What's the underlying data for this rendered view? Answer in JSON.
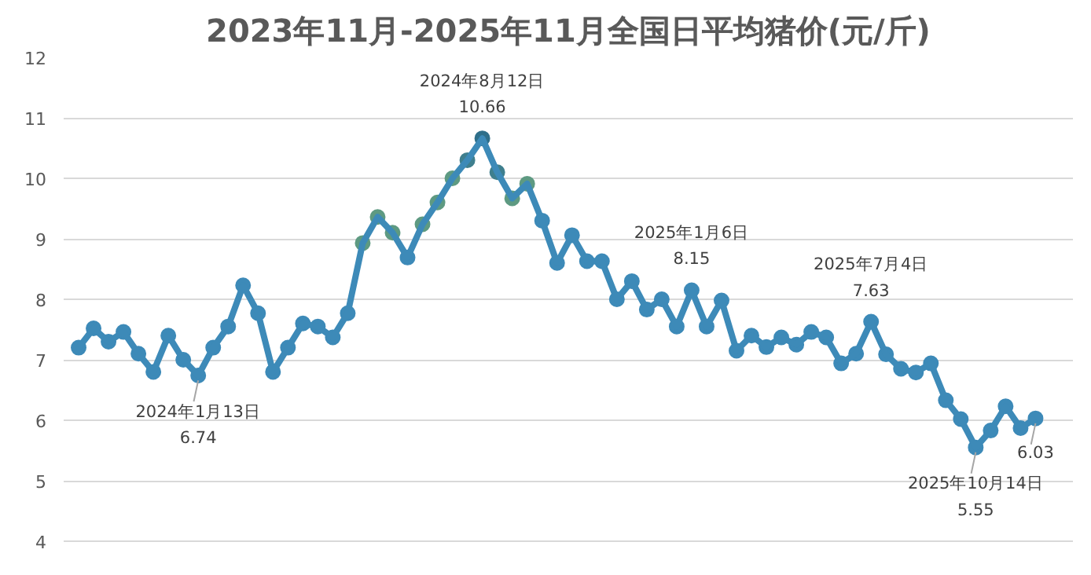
{
  "chart_data": {
    "type": "line",
    "color": "#3d8ab8",
    "title": "2023年11月-2025年11月全国日平均猪价(元/斤)",
    "categories": [
      null,
      null,
      null,
      null,
      null,
      null,
      null,
      null,
      null,
      null,
      null,
      null,
      null,
      null,
      null,
      null,
      null,
      null,
      null,
      null,
      null,
      null,
      null,
      null,
      null,
      null,
      null,
      null,
      null,
      null,
      null,
      null,
      null,
      null,
      null,
      null,
      null,
      null,
      null,
      null,
      null,
      null,
      null,
      null,
      null,
      null,
      null,
      null,
      null,
      null,
      null,
      null,
      null,
      null,
      null,
      null,
      null,
      null,
      null,
      null,
      null,
      null,
      null,
      null,
      null
    ],
    "values": [
      7.2,
      7.52,
      7.3,
      7.46,
      7.1,
      6.8,
      7.4,
      7.0,
      6.74,
      7.2,
      7.55,
      8.23,
      7.77,
      6.8,
      7.2,
      7.6,
      7.55,
      7.37,
      7.77,
      8.93,
      9.36,
      9.1,
      8.69,
      9.24,
      9.6,
      10.0,
      10.3,
      10.66,
      10.1,
      9.67,
      9.91,
      9.3,
      8.6,
      9.06,
      8.63,
      8.63,
      8.0,
      8.3,
      7.83,
      8.0,
      7.55,
      8.15,
      7.55,
      7.98,
      7.15,
      7.4,
      7.21,
      7.37,
      7.25,
      7.46,
      7.37,
      6.94,
      7.1,
      7.63,
      7.09,
      6.85,
      6.79,
      6.94,
      6.33,
      6.02,
      5.55,
      5.83,
      6.23,
      5.87,
      6.03
    ],
    "colors": [
      "#3d8ab8",
      "#3d8ab8",
      "#3d8ab8",
      "#3d8ab8",
      "#3d8ab8",
      "#3d8ab8",
      "#3d8ab8",
      "#3d8ab8",
      "#3d8ab8",
      "#3d8ab8",
      "#3d8ab8",
      "#3d8ab8",
      "#3d8ab8",
      "#3d8ab8",
      "#3d8ab8",
      "#3d8ab8",
      "#3d8ab8",
      "#3d8ab8",
      "#3d8ab8",
      "#5e9a82",
      "#5e9a82",
      "#5e9a82",
      "#3d8ab8",
      "#5e9a82",
      "#5e9a82",
      "#5e9a82",
      "#3f7f8e",
      "#2f6f8a",
      "#3f7f8e",
      "#5e9a82",
      "#5e9a82",
      "#3d8ab8",
      "#3d8ab8",
      "#3d8ab8",
      "#3d8ab8",
      "#3d8ab8",
      "#3d8ab8",
      "#3d8ab8",
      "#3d8ab8",
      "#3d8ab8",
      "#3d8ab8",
      "#3d8ab8",
      "#3d8ab8",
      "#3d8ab8",
      "#3d8ab8",
      "#3d8ab8",
      "#3d8ab8",
      "#3d8ab8",
      "#3d8ab8",
      "#3d8ab8",
      "#3d8ab8",
      "#3d8ab8",
      "#3d8ab8",
      "#3d8ab8",
      "#3d8ab8",
      "#3d8ab8",
      "#3d8ab8",
      "#3d8ab8",
      "#3d8ab8",
      "#3d8ab8",
      "#3d8ab8",
      "#3d8ab8",
      "#3d8ab8",
      "#3d8ab8",
      "#3d8ab8"
    ],
    "ylim": [
      4,
      12
    ],
    "yticks": [
      4,
      5,
      6,
      7,
      8,
      9,
      10,
      11,
      12
    ],
    "grid": "y",
    "tick_labels": "y",
    "marker": "circle",
    "legend": false,
    "annotations": [
      {
        "text": "2024年1月13日\n6.74",
        "y": 6.74
      },
      {
        "text": "2024年8月12日\n10.66",
        "y": 10.66
      },
      {
        "text": "2025年1月6日\n8.15",
        "y": 8.15
      },
      {
        "text": "2025年7月4日\n7.63",
        "y": 7.63
      },
      {
        "text": "2025年10月14日\n5.55",
        "y": 5.55
      },
      {
        "text": "6.03",
        "y": 6.03
      }
    ]
  }
}
